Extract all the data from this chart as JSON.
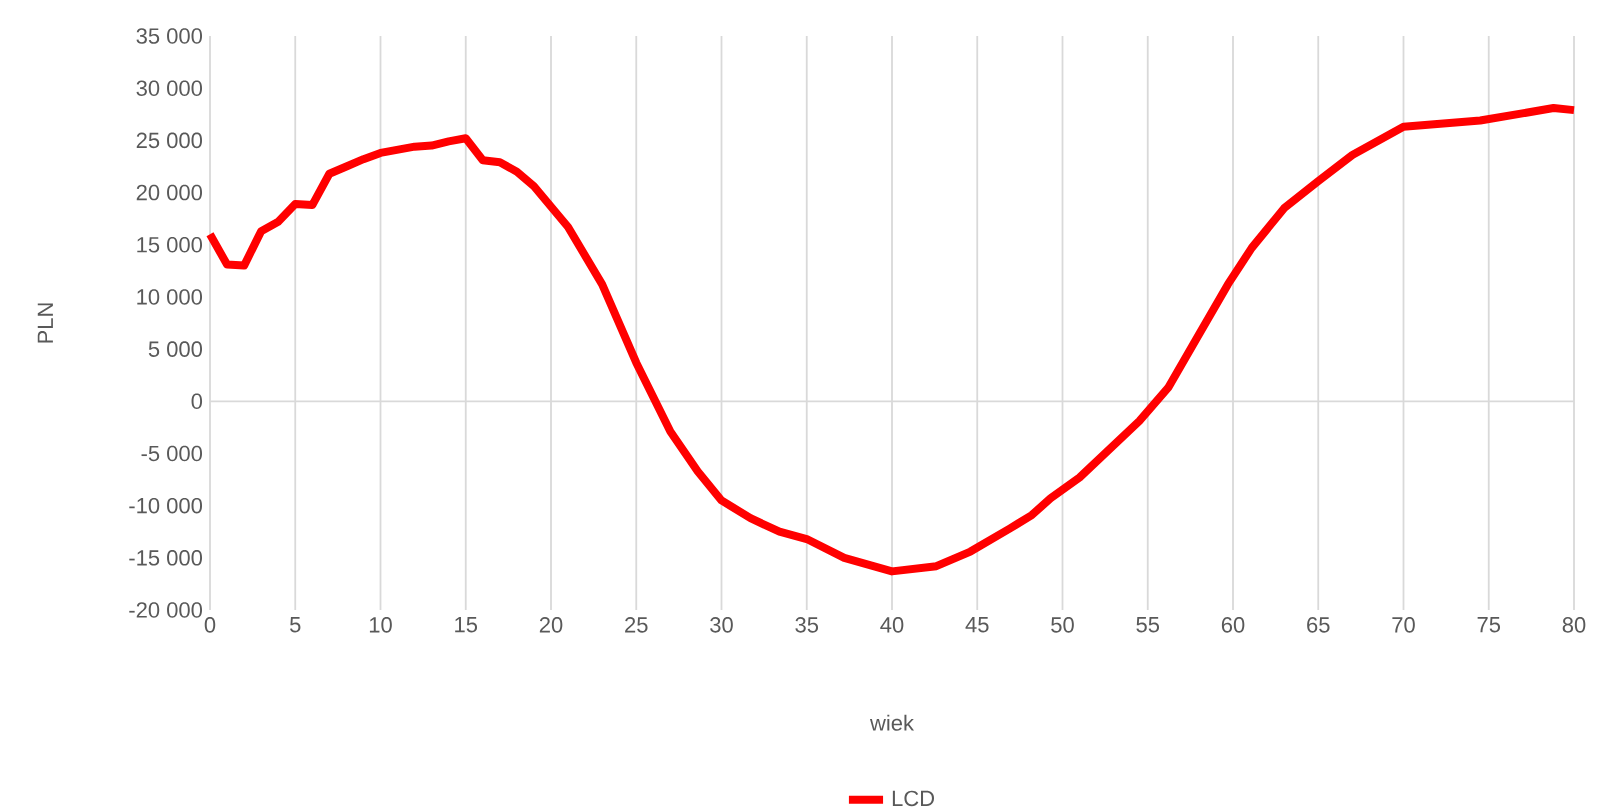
{
  "chart_data": {
    "type": "line",
    "xlabel": "wiek",
    "ylabel": "PLN",
    "x": [
      0,
      1,
      2,
      3,
      4,
      5,
      6,
      7,
      8,
      9,
      10,
      11,
      12,
      13,
      14,
      15,
      16,
      17,
      18,
      19,
      21,
      23,
      25,
      27,
      28.6,
      30,
      31.7,
      33.4,
      35,
      37.2,
      40,
      42.6,
      44.6,
      46.9,
      48.2,
      49.3,
      51,
      54.5,
      56.2,
      57.9,
      59.7,
      61.1,
      63,
      65,
      67,
      70,
      74.5,
      78.8,
      80
    ],
    "series": [
      {
        "name": "LCD",
        "color": "#ff0000",
        "values": [
          16000,
          13100,
          13000,
          16300,
          17200,
          18900,
          18800,
          21800,
          22500,
          23200,
          23800,
          24100,
          24400,
          24500,
          24900,
          25200,
          23100,
          22900,
          22000,
          20600,
          16700,
          11200,
          3700,
          -2900,
          -6700,
          -9500,
          -11200,
          -12500,
          -13200,
          -15000,
          -16300,
          -15800,
          -14400,
          -12200,
          -10900,
          -9300,
          -7300,
          -1900,
          1300,
          6100,
          11200,
          14700,
          18500,
          21100,
          23600,
          26300,
          26900,
          28100,
          27900
        ]
      }
    ],
    "xlim": [
      0,
      80
    ],
    "xticks": [
      0,
      5,
      10,
      15,
      20,
      25,
      30,
      35,
      40,
      45,
      50,
      55,
      60,
      65,
      70,
      75,
      80
    ],
    "ylim": [
      -20000,
      35000
    ],
    "yticks": [
      {
        "value": -20000,
        "label": "-20 000"
      },
      {
        "value": -15000,
        "label": "-15 000"
      },
      {
        "value": -10000,
        "label": "-10 000"
      },
      {
        "value": -5000,
        "label": "-5 000"
      },
      {
        "value": 0,
        "label": "0"
      },
      {
        "value": 5000,
        "label": "5 000"
      },
      {
        "value": 10000,
        "label": "10 000"
      },
      {
        "value": 15000,
        "label": "15 000"
      },
      {
        "value": 20000,
        "label": "20 000"
      },
      {
        "value": 25000,
        "label": "25 000"
      },
      {
        "value": 30000,
        "label": "30 000"
      },
      {
        "value": 35000,
        "label": "35 000"
      }
    ],
    "ref_lines": [
      {
        "axis": "y",
        "value": 0,
        "color": "#d9d9d9"
      }
    ],
    "grid": "x",
    "legend": "bottom",
    "marker": "none",
    "line_style": "solid"
  }
}
